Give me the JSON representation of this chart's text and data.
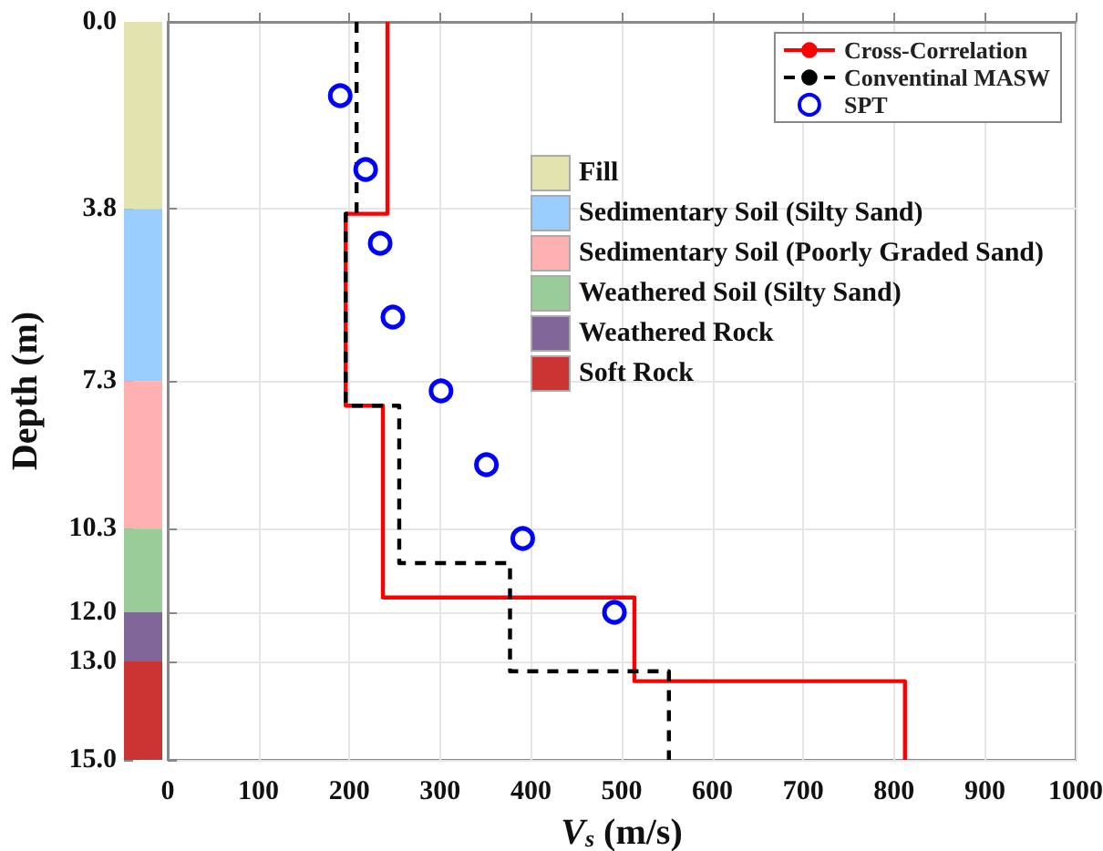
{
  "chart_data": [
    {
      "type": "bar",
      "ylabel": "Depth (m)",
      "categories": [
        null
      ],
      "stacked": true,
      "ylim": [
        15,
        0
      ],
      "yticks": [
        {
          "value": 0,
          "label": "0.0"
        },
        {
          "value": 3.8,
          "label": "3.8"
        },
        {
          "value": 7.3,
          "label": "7.3"
        },
        {
          "value": 10.3,
          "label": "10.3"
        },
        {
          "value": 12,
          "label": "12.0"
        },
        {
          "value": 13,
          "label": "13.0"
        },
        {
          "value": 15,
          "label": "15.0"
        }
      ],
      "tick_labels": "y",
      "legend": "right",
      "series": [
        {
          "name": "Fill",
          "color": "#e3e3b0",
          "values": [
            3.8
          ]
        },
        {
          "name": "Sedimentary Soil (Silty Sand)",
          "color": "#99ccff",
          "values": [
            3.5
          ]
        },
        {
          "name": "Sedimentary Soil (Poorly Graded Sand)",
          "color": "#ffb0b0",
          "values": [
            3.0
          ]
        },
        {
          "name": "Weathered Soil (Silty Sand)",
          "color": "#99cc99",
          "values": [
            1.7
          ]
        },
        {
          "name": "Weathered Rock",
          "color": "#806699",
          "values": [
            1.0
          ]
        },
        {
          "name": "Soft Rock",
          "color": "#cc3333",
          "values": [
            2.0
          ]
        }
      ]
    },
    {
      "type": "line",
      "xlabel": "V$_{s}$ (m/s)",
      "xlim": [
        0,
        1000
      ],
      "xticks": [
        0,
        100,
        200,
        300,
        400,
        500,
        600,
        700,
        800,
        900,
        1000
      ],
      "ylim": [
        15,
        0
      ],
      "yticks": [
        {
          "value": 0,
          "label": null
        },
        {
          "value": 3.8,
          "label": null
        },
        {
          "value": 7.3,
          "label": null
        },
        {
          "value": 10.3,
          "label": null
        },
        {
          "value": 12,
          "label": null
        },
        {
          "value": 13,
          "label": null
        },
        {
          "value": 15,
          "label": null
        }
      ],
      "tick_labels": "x",
      "grid": true,
      "legend": "top right",
      "series": [
        {
          "name": "Cross-Correlation",
          "type": "line",
          "color": "#ff0000",
          "line_style": "solid",
          "marker": "none",
          "x": [
            242,
            242,
            196,
            196,
            237,
            237,
            514,
            514,
            812,
            812
          ],
          "values": [
            0,
            3.9,
            3.9,
            7.8,
            7.8,
            11.7,
            11.7,
            13.4,
            13.4,
            15
          ]
        },
        {
          "name": "Conventinal MASW",
          "type": "line",
          "color": "#000000",
          "line_style": "dashed",
          "marker": "none",
          "x": [
            208,
            208,
            196,
            196,
            255,
            255,
            377,
            377,
            552,
            552
          ],
          "values": [
            0,
            3.9,
            3.9,
            7.8,
            7.8,
            11.0,
            11.0,
            13.2,
            13.2,
            15
          ]
        },
        {
          "name": "SPT",
          "type": "scatter",
          "color": "#0000ff",
          "marker": "circle",
          "x": [
            190,
            218,
            234,
            248,
            301,
            351,
            391,
            492
          ],
          "values": [
            1.5,
            3.0,
            4.5,
            6.0,
            7.5,
            9.0,
            10.5,
            12.0
          ]
        }
      ]
    }
  ]
}
